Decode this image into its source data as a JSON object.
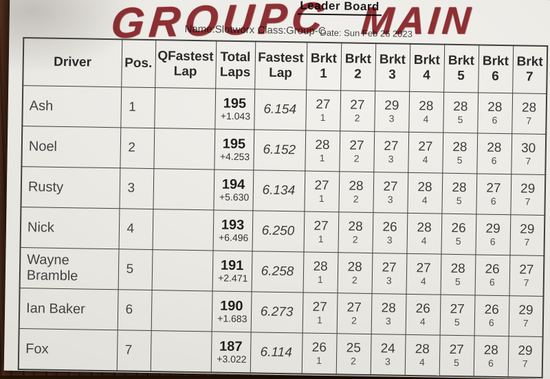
{
  "header": {
    "title": "Leader Board",
    "meta": "Name:Slotworx Class:Group-C",
    "date": "Date: Sun Feb 26 2023"
  },
  "annotations": {
    "left": "GROUPC",
    "right": "MAIN"
  },
  "table": {
    "headers": [
      "Driver",
      "Pos.",
      "QFastest Lap",
      "Total Laps",
      "Fastest Lap",
      "Brkt 1",
      "Brkt 2",
      "Brkt 3",
      "Brkt 4",
      "Brkt 5",
      "Brkt 6",
      "Brkt 7"
    ],
    "bracket_numbers": [
      "1",
      "2",
      "3",
      "4",
      "5",
      "6",
      "7"
    ],
    "rows": [
      {
        "driver": "Ash",
        "pos": "1",
        "qfastest_lap": "",
        "total_laps": "195",
        "gap": "+1.043",
        "fastest_lap": "6.154",
        "bracket_laps": [
          "27",
          "27",
          "29",
          "28",
          "28",
          "28",
          "28"
        ]
      },
      {
        "driver": "Noel",
        "pos": "2",
        "qfastest_lap": "",
        "total_laps": "195",
        "gap": "+4.253",
        "fastest_lap": "6.152",
        "bracket_laps": [
          "28",
          "27",
          "27",
          "27",
          "28",
          "28",
          "30"
        ]
      },
      {
        "driver": "Rusty",
        "pos": "3",
        "qfastest_lap": "",
        "total_laps": "194",
        "gap": "+5.630",
        "fastest_lap": "6.134",
        "bracket_laps": [
          "27",
          "28",
          "27",
          "28",
          "28",
          "27",
          "29"
        ]
      },
      {
        "driver": "Nick",
        "pos": "4",
        "qfastest_lap": "",
        "total_laps": "193",
        "gap": "+6.496",
        "fastest_lap": "6.250",
        "bracket_laps": [
          "27",
          "28",
          "26",
          "28",
          "26",
          "29",
          "29"
        ]
      },
      {
        "driver": "Wayne Bramble",
        "pos": "5",
        "qfastest_lap": "",
        "total_laps": "191",
        "gap": "+2.471",
        "fastest_lap": "6.258",
        "bracket_laps": [
          "28",
          "28",
          "27",
          "27",
          "28",
          "26",
          "27"
        ]
      },
      {
        "driver": "Ian Baker",
        "pos": "6",
        "qfastest_lap": "",
        "total_laps": "190",
        "gap": "+1.683",
        "fastest_lap": "6.273",
        "bracket_laps": [
          "27",
          "27",
          "28",
          "26",
          "27",
          "26",
          "29"
        ]
      },
      {
        "driver": "Fox",
        "pos": "7",
        "qfastest_lap": "",
        "total_laps": "187",
        "gap": "+3.022",
        "fastest_lap": "6.114",
        "bracket_laps": [
          "26",
          "25",
          "24",
          "28",
          "27",
          "28",
          "29"
        ]
      }
    ]
  },
  "colors": {
    "marker_red": "#8e2127",
    "wood_brown": "#4a2a18",
    "paper": "#ebe9e4",
    "table_border": "#3e3e3e"
  }
}
